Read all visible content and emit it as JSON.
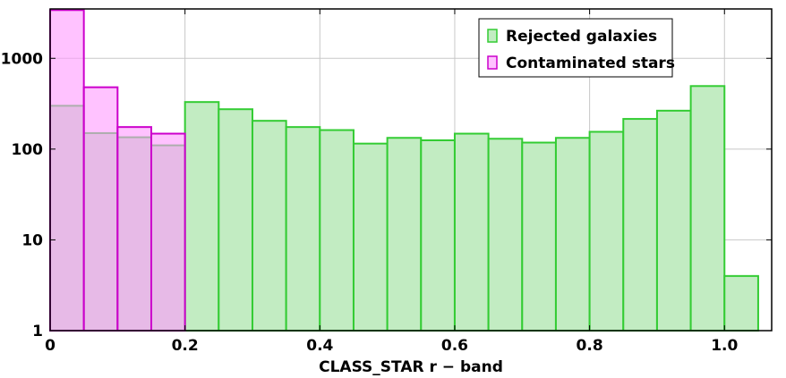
{
  "chart_data": {
    "type": "bar",
    "subtype": "histogram",
    "xlabel": "CLASS_STAR r − band",
    "ylabel": "",
    "xlim": [
      0,
      1.07
    ],
    "ylim": [
      1,
      3500
    ],
    "yscale": "log",
    "grid": true,
    "legend_position": "top-right",
    "x_ticks": [
      0,
      0.2,
      0.4,
      0.6,
      0.8,
      1.0
    ],
    "x_tick_labels": [
      "0",
      "0.2",
      "0.4",
      "0.6",
      "0.8",
      "1.0"
    ],
    "y_ticks": [
      1,
      10,
      100,
      1000
    ],
    "y_tick_labels": [
      "1",
      "10",
      "100",
      "1000"
    ],
    "bin_width": 0.05,
    "series": [
      {
        "name": "Rejected galaxies",
        "fill": "#c2ecc2",
        "stroke": "#33cc33",
        "bin_starts": [
          0.0,
          0.05,
          0.1,
          0.15,
          0.2,
          0.25,
          0.3,
          0.35,
          0.4,
          0.45,
          0.5,
          0.55,
          0.6,
          0.65,
          0.7,
          0.75,
          0.8,
          0.85,
          0.9,
          0.95,
          1.0
        ],
        "values": [
          300,
          150,
          135,
          110,
          330,
          275,
          205,
          175,
          162,
          115,
          133,
          125,
          148,
          130,
          118,
          133,
          155,
          215,
          265,
          495,
          4
        ]
      },
      {
        "name": "Contaminated stars",
        "fill": "#ff99ff",
        "stroke": "#cc00cc",
        "bin_starts": [
          0.0,
          0.05,
          0.1,
          0.15
        ],
        "values": [
          3400,
          480,
          175,
          148
        ]
      }
    ]
  }
}
